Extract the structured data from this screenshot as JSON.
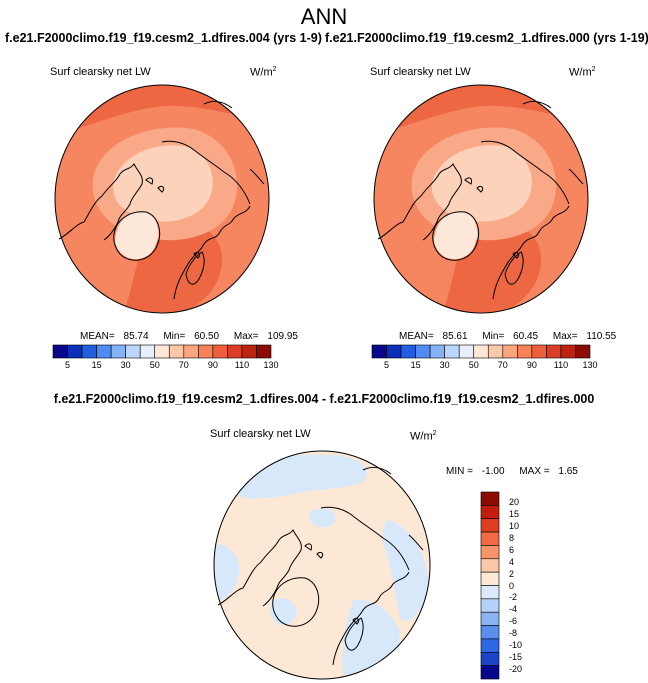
{
  "title": "ANN",
  "case_titles": {
    "left": "f.e21.F2000climo.f19_f19.cesm2_1.dfires.004 (yrs 1-9)",
    "right": "f.e21.F2000climo.f19_f19.cesm2_1.dfires.000 (yrs 1-19)"
  },
  "diff_title": "f.e21.F2000climo.f19_f19.cesm2_1.dfires.004 - f.e21.F2000climo.f19_f19.cesm2_1.dfires.000",
  "panels": [
    {
      "variable": "Surf clearsky net LW",
      "units_base": "W/m",
      "units_exp": "2",
      "stats": {
        "mean_label": "MEAN=",
        "mean": "85.74",
        "min_label": "Min=",
        "min": "60.50",
        "max_label": "Max=",
        "max": "109.95"
      }
    },
    {
      "variable": "Surf clearsky net LW",
      "units_base": "W/m",
      "units_exp": "2",
      "stats": {
        "mean_label": "MEAN=",
        "mean": "85.61",
        "min_label": "Min=",
        "min": "60.45",
        "max_label": "Max=",
        "max": "110.55"
      }
    },
    {
      "variable": "Surf clearsky net LW",
      "units_base": "W/m",
      "units_exp": "2",
      "stats": {
        "min_label": "MIN =",
        "min": "-1.00",
        "max_label": "MAX =",
        "max": "1.65"
      }
    }
  ],
  "colorbar_abs": {
    "colors": [
      "#08088c",
      "#0c2fb8",
      "#1f5fe0",
      "#4f8bf2",
      "#86b2f8",
      "#bcd5fb",
      "#e8eefc",
      "#fde7d6",
      "#fcc8a8",
      "#fba57e",
      "#f88258",
      "#ef5e3c",
      "#dc3c24",
      "#bc2410",
      "#8c0c04"
    ],
    "labels": [
      "5",
      "15",
      "30",
      "50",
      "70",
      "90",
      "110",
      "130"
    ]
  },
  "colorbar_diff": {
    "colors": [
      "#8c0c04",
      "#c21e0e",
      "#e03e22",
      "#f46a44",
      "#f99468",
      "#fcc8a8",
      "#fde7d6",
      "#dbe9fb",
      "#b6d1f8",
      "#8ab3f4",
      "#5b8fee",
      "#2f68e4",
      "#1b44c8",
      "#08088c"
    ],
    "labels": [
      "20",
      "15",
      "10",
      "8",
      "6",
      "4",
      "2",
      "0",
      "-2",
      "-4",
      "-6",
      "-8",
      "-10",
      "-15",
      "-20"
    ]
  },
  "map_colors": {
    "abs_base": "#f58660",
    "abs_dark": "#ec6742",
    "abs_mid": "#f9a987",
    "abs_light": "#fcd2bb",
    "abs_pale": "#fde7d8",
    "diff_base": "#fde8d6",
    "diff_blue": "#d8e8fb"
  }
}
